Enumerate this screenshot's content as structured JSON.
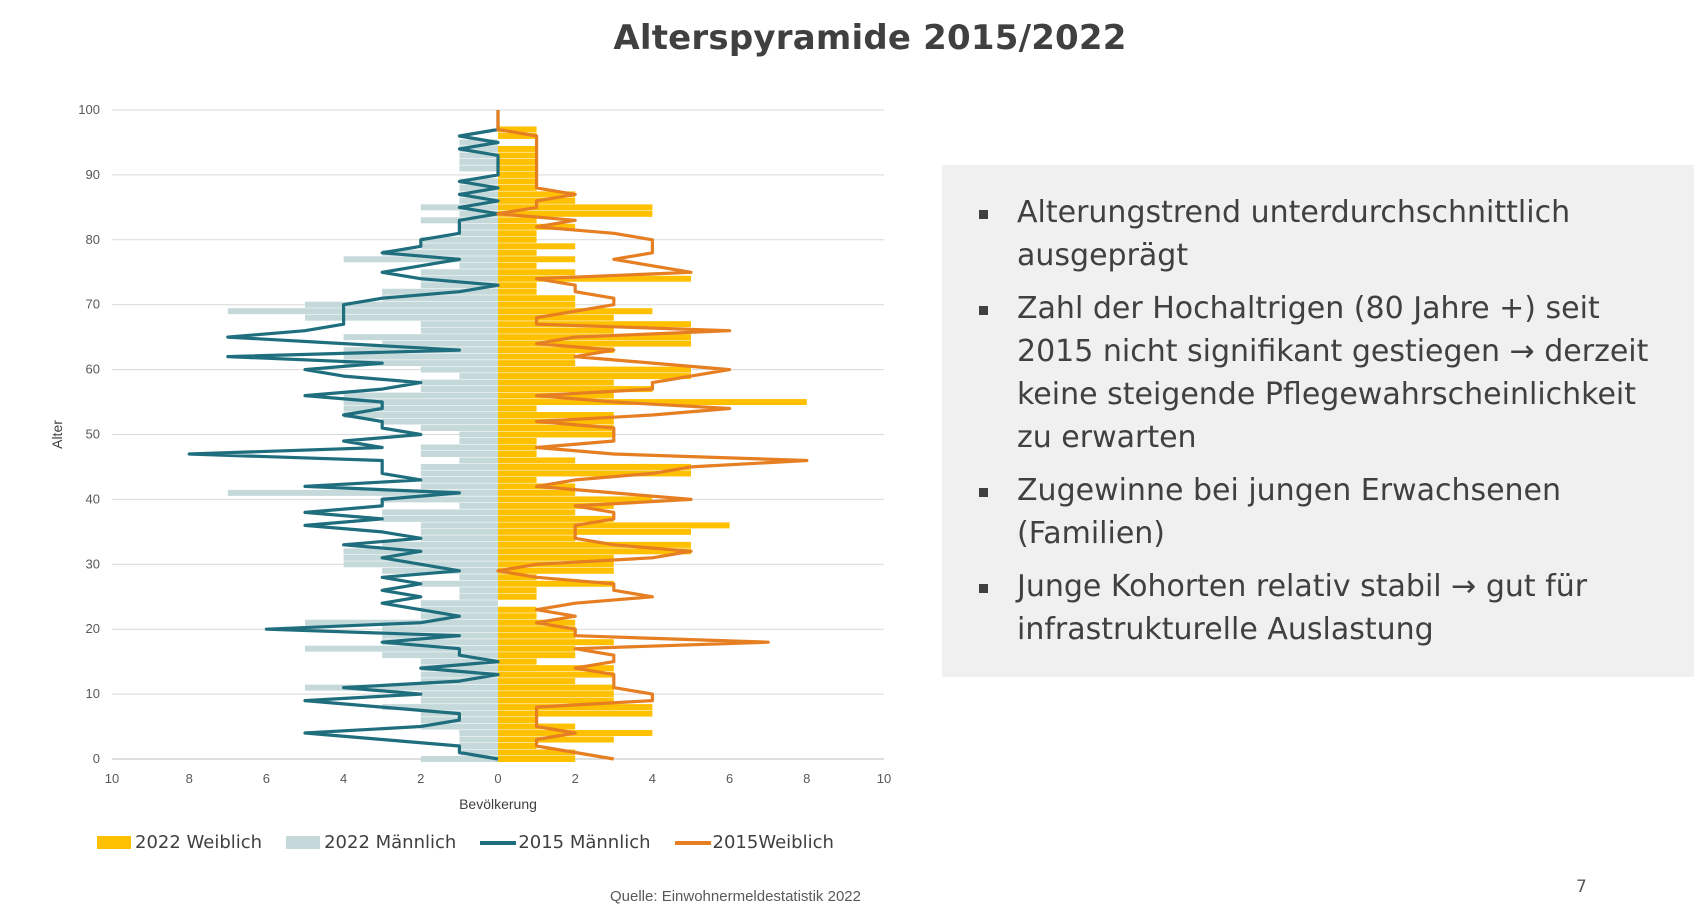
{
  "slide": {
    "title": "Alterspyramide 2015/2022",
    "bullets": [
      "Alterungstrend unterdurchschnittlich ausgeprägt",
      "Zahl der Hochaltrigen (80 Jahre +) seit 2015 nicht signifikant gestiegen → derzeit keine steigende Pflegewahrscheinlichkeit zu erwarten",
      "Zugewinne bei jungen Erwachsenen (Familien)",
      "Junge Kohorten relativ stabil → gut für infrastrukturelle Auslastung"
    ],
    "source": "Quelle: Einwohnermeldestatistik 2022",
    "page_number": "7"
  },
  "colors": {
    "w2022": "#FFC000",
    "m2022": "#C5D9DB",
    "m2015": "#1F6E7E",
    "w2015": "#E67E22",
    "grid": "#D9D9D9",
    "axis": "#BFBFBF",
    "text": "#404040"
  },
  "chart_data": {
    "type": "bar",
    "orientation": "horizontal-pyramid",
    "xlabel": "Bevölkerung",
    "ylabel": "Alter",
    "xlim": [
      -10,
      10
    ],
    "ylim": [
      0,
      100
    ],
    "x_ticks": [
      "10",
      "8",
      "6",
      "4",
      "2",
      "0",
      "2",
      "4",
      "6",
      "8",
      "10"
    ],
    "y_ticks": [
      "0",
      "10",
      "20",
      "30",
      "40",
      "50",
      "60",
      "70",
      "80",
      "90",
      "100"
    ],
    "grid": true,
    "legend_position": "bottom",
    "ages": [
      0,
      1,
      2,
      3,
      4,
      5,
      6,
      7,
      8,
      9,
      10,
      11,
      12,
      13,
      14,
      15,
      16,
      17,
      18,
      19,
      20,
      21,
      22,
      23,
      24,
      25,
      26,
      27,
      28,
      29,
      30,
      31,
      32,
      33,
      34,
      35,
      36,
      37,
      38,
      39,
      40,
      41,
      42,
      43,
      44,
      45,
      46,
      47,
      48,
      49,
      50,
      51,
      52,
      53,
      54,
      55,
      56,
      57,
      58,
      59,
      60,
      61,
      62,
      63,
      64,
      65,
      66,
      67,
      68,
      69,
      70,
      71,
      72,
      73,
      74,
      75,
      76,
      77,
      78,
      79,
      80,
      81,
      82,
      83,
      84,
      85,
      86,
      87,
      88,
      89,
      90,
      91,
      92,
      93,
      94,
      95,
      96,
      97,
      98,
      99,
      100
    ],
    "series": [
      {
        "name": "2022 Weiblich",
        "kind": "bar",
        "side": "right",
        "values": [
          2,
          2,
          1,
          3,
          4,
          2,
          1,
          4,
          4,
          3,
          3,
          3,
          2,
          3,
          3,
          1,
          2,
          2,
          3,
          2,
          2,
          2,
          1,
          1,
          0,
          1,
          1,
          3,
          1,
          3,
          3,
          3,
          5,
          5,
          2,
          5,
          6,
          3,
          2,
          3,
          4,
          2,
          2,
          1,
          5,
          5,
          2,
          1,
          1,
          1,
          3,
          3,
          3,
          3,
          1,
          8,
          3,
          4,
          3,
          5,
          5,
          2,
          2,
          3,
          5,
          5,
          3,
          5,
          3,
          4,
          2,
          2,
          1,
          1,
          5,
          2,
          1,
          2,
          1,
          2,
          1,
          1,
          2,
          1,
          4,
          4,
          2,
          2,
          1,
          1,
          1,
          1,
          1,
          1,
          1,
          0,
          1,
          1,
          0,
          0,
          0
        ]
      },
      {
        "name": "2022 Männlich",
        "kind": "bar",
        "side": "left",
        "values": [
          2,
          1,
          1,
          1,
          1,
          2,
          2,
          2,
          3,
          2,
          2,
          5,
          2,
          2,
          2,
          2,
          3,
          5,
          3,
          3,
          3,
          5,
          2,
          2,
          2,
          1,
          1,
          2,
          1,
          3,
          4,
          4,
          4,
          3,
          2,
          2,
          2,
          3,
          3,
          1,
          3,
          7,
          2,
          2,
          2,
          2,
          1,
          2,
          2,
          1,
          1,
          2,
          3,
          4,
          4,
          4,
          4,
          2,
          2,
          1,
          2,
          4,
          4,
          4,
          3,
          4,
          2,
          2,
          5,
          7,
          5,
          3,
          3,
          2,
          2,
          2,
          1,
          4,
          3,
          2,
          2,
          1,
          1,
          2,
          1,
          2,
          1,
          1,
          1,
          1,
          0,
          1,
          1,
          1,
          1,
          1,
          0,
          0,
          0,
          0,
          0
        ]
      },
      {
        "name": "2015 Männlich",
        "kind": "line",
        "side": "left",
        "values": [
          0,
          1,
          1,
          3,
          5,
          2,
          1,
          1,
          3,
          5,
          2,
          4,
          1,
          0,
          2,
          0,
          1,
          1,
          3,
          1,
          6,
          2,
          1,
          2,
          3,
          2,
          3,
          2,
          3,
          1,
          2,
          3,
          2,
          4,
          2,
          3,
          5,
          3,
          5,
          3,
          3,
          1,
          5,
          2,
          3,
          3,
          3,
          8,
          3,
          4,
          2,
          3,
          3,
          4,
          3,
          3,
          5,
          3,
          2,
          4,
          5,
          3,
          7,
          1,
          4,
          7,
          5,
          4,
          4,
          4,
          4,
          3,
          1,
          0,
          2,
          3,
          2,
          1,
          3,
          2,
          2,
          1,
          1,
          1,
          0,
          1,
          0,
          1,
          0,
          1,
          0,
          0,
          0,
          0,
          1,
          0,
          1,
          0,
          0,
          0,
          0
        ]
      },
      {
        "name": "2015Weiblich",
        "kind": "line",
        "side": "right",
        "values": [
          3,
          2,
          1,
          1,
          2,
          1,
          1,
          1,
          1,
          4,
          4,
          3,
          3,
          3,
          2,
          3,
          3,
          2,
          7,
          2,
          2,
          1,
          2,
          1,
          2,
          4,
          3,
          3,
          1,
          0,
          1,
          4,
          5,
          3,
          2,
          2,
          2,
          3,
          3,
          2,
          5,
          3,
          1,
          2,
          4,
          5,
          8,
          3,
          1,
          3,
          3,
          3,
          1,
          4,
          6,
          3,
          1,
          4,
          4,
          5,
          6,
          4,
          2,
          3,
          1,
          2,
          6,
          1,
          1,
          2,
          3,
          3,
          2,
          2,
          1,
          5,
          4,
          3,
          4,
          4,
          4,
          3,
          1,
          2,
          0,
          1,
          1,
          2,
          1,
          1,
          1,
          1,
          1,
          1,
          1,
          1,
          1,
          0,
          0,
          0,
          0
        ]
      }
    ]
  }
}
